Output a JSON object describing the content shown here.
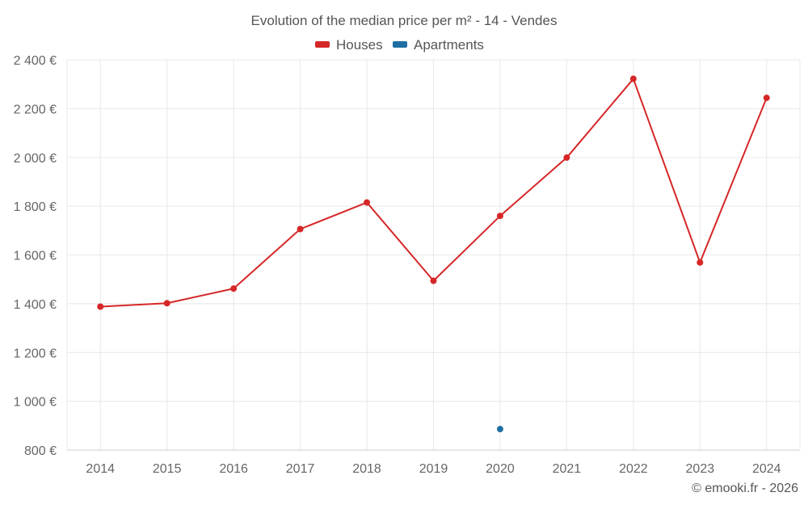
{
  "chart_data": {
    "type": "line",
    "title": "Evolution of the median price per m² - 14 - Vendes",
    "categories": [
      "2014",
      "2015",
      "2016",
      "2017",
      "2018",
      "2019",
      "2020",
      "2021",
      "2022",
      "2023",
      "2024"
    ],
    "series": [
      {
        "name": "Houses",
        "color": "#d62728",
        "values": [
          1388,
          1402,
          1462,
          1706,
          1815,
          1494,
          1760,
          1999,
          2322,
          1569,
          2244
        ]
      },
      {
        "name": "Apartments",
        "color": "#1f6fa3",
        "values": [
          null,
          null,
          null,
          null,
          null,
          null,
          886,
          null,
          null,
          null,
          null
        ]
      }
    ],
    "ylim": [
      800,
      2400
    ],
    "yticks": [
      800,
      1000,
      1200,
      1400,
      1600,
      1800,
      2000,
      2200,
      2400
    ],
    "ytick_labels": [
      "800 €",
      "1 000 €",
      "1 200 €",
      "1 400 €",
      "1 600 €",
      "1 800 €",
      "2 000 €",
      "2 200 €",
      "2 400 €"
    ],
    "xlabel": "",
    "ylabel": "",
    "legend_position": "top-center",
    "grid": true
  },
  "credit": "© emooki.fr - 2026"
}
